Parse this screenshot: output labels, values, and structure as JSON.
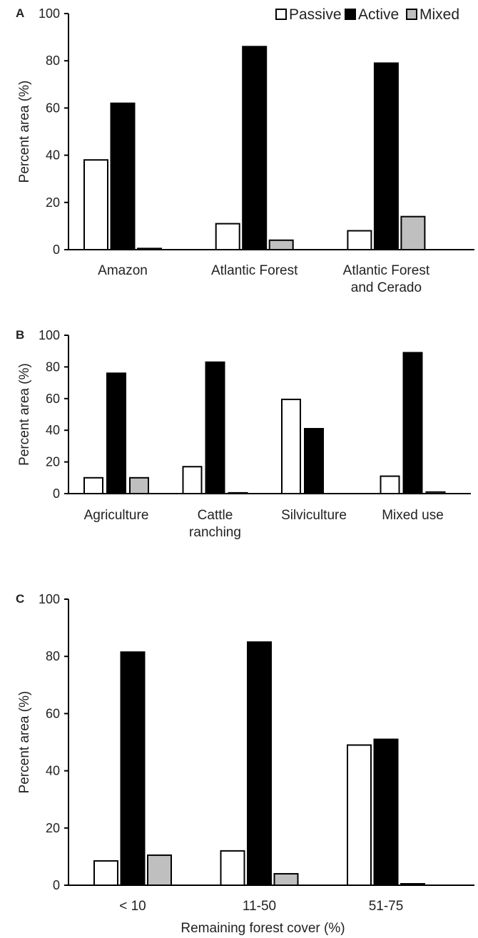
{
  "legend": [
    {
      "name": "Passive",
      "color": "#ffffff"
    },
    {
      "name": "Active",
      "color": "#000000"
    },
    {
      "name": "Mixed",
      "color": "#bfbfbf"
    }
  ],
  "chart_data": [
    {
      "type": "bar",
      "panel": "A",
      "ylabel": "Percent area (%)",
      "xlabel": "",
      "ylim": [
        0,
        100
      ],
      "yticks": [
        0,
        20,
        40,
        60,
        80,
        100
      ],
      "categories": [
        [
          "Amazon"
        ],
        [
          "Atlantic Forest"
        ],
        [
          "Atlantic Forest",
          "and Cerado"
        ]
      ],
      "series": [
        {
          "name": "Passive",
          "color": "#ffffff",
          "values": [
            38,
            11,
            8
          ]
        },
        {
          "name": "Active",
          "color": "#000000",
          "values": [
            62,
            86,
            79
          ]
        },
        {
          "name": "Mixed",
          "color": "#bfbfbf",
          "values": [
            0.5,
            4,
            14
          ]
        }
      ]
    },
    {
      "type": "bar",
      "panel": "B",
      "ylabel": "Percent area (%)",
      "xlabel": "",
      "ylim": [
        0,
        100
      ],
      "yticks": [
        0,
        20,
        40,
        60,
        80,
        100
      ],
      "categories": [
        [
          "Agriculture"
        ],
        [
          "Cattle",
          "ranching"
        ],
        [
          "Silviculture"
        ],
        [
          "Mixed use"
        ]
      ],
      "series": [
        {
          "name": "Passive",
          "color": "#ffffff",
          "values": [
            10,
            17,
            59.5,
            11
          ]
        },
        {
          "name": "Active",
          "color": "#000000",
          "values": [
            76,
            83,
            41,
            89
          ]
        },
        {
          "name": "Mixed",
          "color": "#bfbfbf",
          "values": [
            10,
            0.5,
            0,
            1
          ]
        }
      ]
    },
    {
      "type": "bar",
      "panel": "C",
      "ylabel": "Percent area (%)",
      "xlabel": "Remaining forest cover (%)",
      "ylim": [
        0,
        100
      ],
      "yticks": [
        0,
        20,
        40,
        60,
        80,
        100
      ],
      "categories": [
        [
          "< 10"
        ],
        [
          "11-50"
        ],
        [
          "51-75"
        ]
      ],
      "series": [
        {
          "name": "Passive",
          "color": "#ffffff",
          "values": [
            8.5,
            12,
            49
          ]
        },
        {
          "name": "Active",
          "color": "#000000",
          "values": [
            81.5,
            85,
            51
          ]
        },
        {
          "name": "Mixed",
          "color": "#bfbfbf",
          "values": [
            10.5,
            4,
            0.5
          ]
        }
      ]
    }
  ]
}
